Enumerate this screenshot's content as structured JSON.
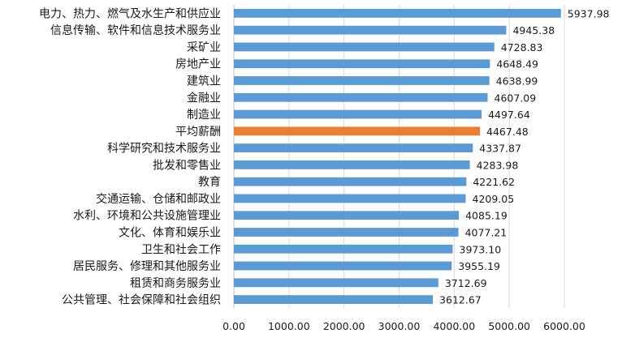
{
  "chart_data": {
    "type": "bar",
    "orientation": "horizontal",
    "categories": [
      "电力、热力、燃气及水生产和供应业",
      "信息传输、软件和信息技术服务业",
      "采矿业",
      "房地产业",
      "建筑业",
      "金融业",
      "制造业",
      "平均薪酬",
      "科学研究和技术服务业",
      "批发和零售业",
      "教育",
      "交通运输、仓储和邮政业",
      "水利、环境和公共设施管理业",
      "文化、体育和娱乐业",
      "卫生和社会工作",
      "居民服务、修理和其他服务业",
      "租赁和商务服务业",
      "公共管理、社会保障和社会组织"
    ],
    "values": [
      5937.98,
      4945.38,
      4728.83,
      4648.49,
      4638.99,
      4607.09,
      4497.64,
      4467.48,
      4337.87,
      4283.98,
      4221.62,
      4209.05,
      4085.19,
      4077.21,
      3973.1,
      3955.19,
      3712.69,
      3612.67
    ],
    "value_labels": [
      "5937.98",
      "4945.38",
      "4728.83",
      "4648.49",
      "4638.99",
      "4607.09",
      "4497.64",
      "4467.48",
      "4337.87",
      "4283.98",
      "4221.62",
      "4209.05",
      "4085.19",
      "4077.21",
      "3973.10",
      "3955.19",
      "3712.69",
      "3612.67"
    ],
    "xlim": [
      0,
      6000
    ],
    "xticks": [
      0,
      1000,
      2000,
      3000,
      4000,
      5000,
      6000
    ],
    "xtick_labels": [
      "0.00",
      "1000.00",
      "2000.00",
      "3000.00",
      "4000.00",
      "5000.00",
      "6000.00"
    ],
    "grid": "vertical",
    "legend": "none",
    "highlight_category": "平均薪酬",
    "colors": {
      "bar": "#5b9bd5",
      "highlight": "#ed7d31",
      "grid": "#d9d9d9",
      "axis": "#bfbfbf",
      "text": "#1a1a1a"
    }
  }
}
